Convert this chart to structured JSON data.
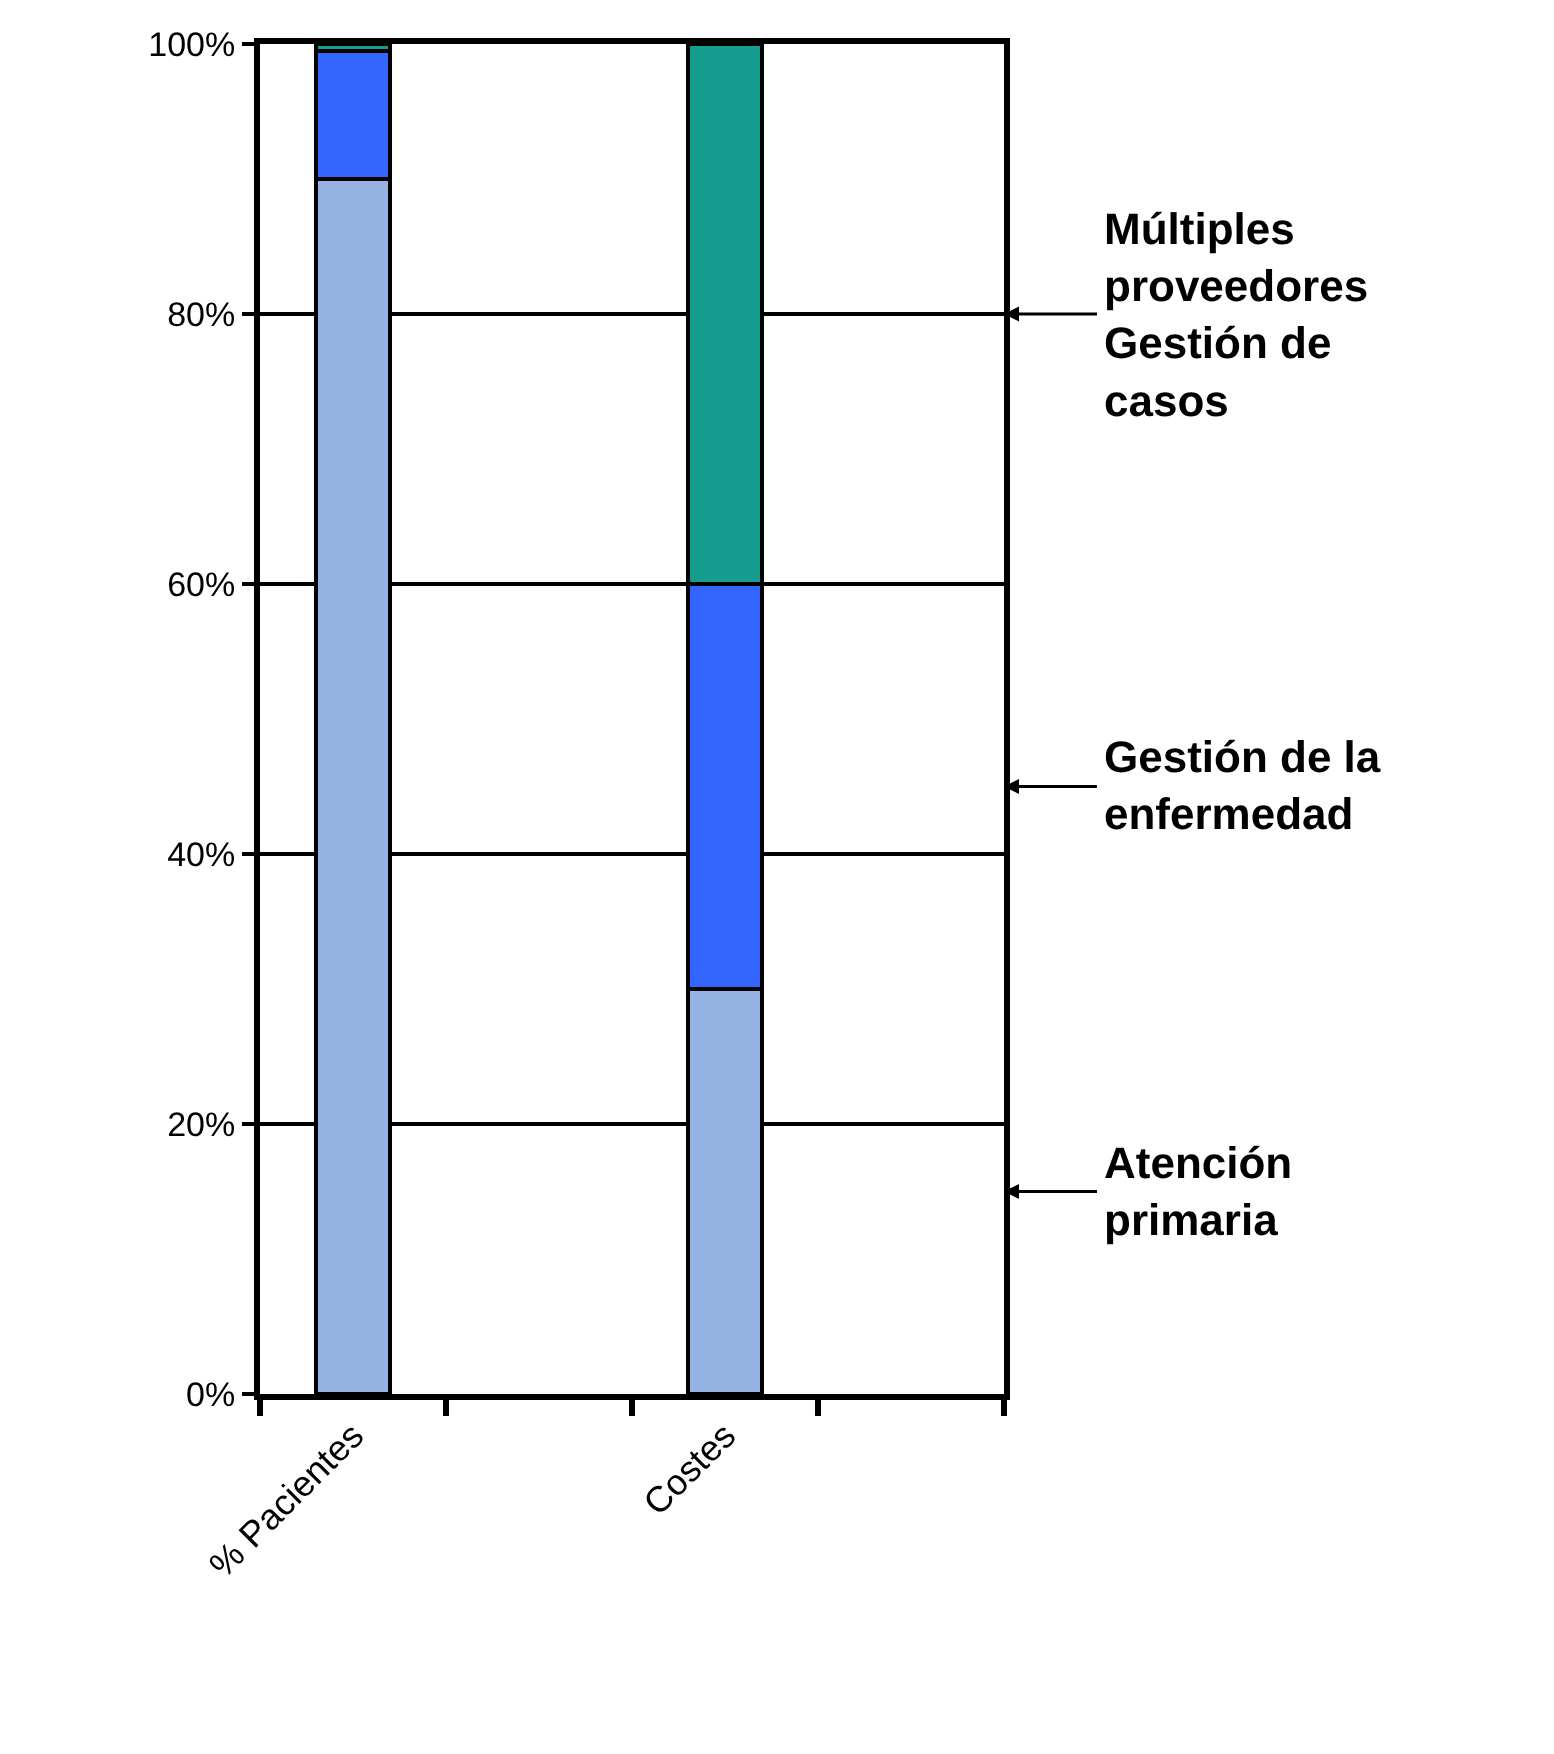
{
  "chart_data": {
    "type": "bar",
    "stacked": true,
    "categories": [
      "% Pacientes",
      null,
      "Costes",
      null
    ],
    "series": [
      {
        "name": "Atención primaria",
        "color": "#95b3e3",
        "values": [
          90,
          null,
          30,
          null
        ]
      },
      {
        "name": "Gestión de la enfermedad",
        "color": "#3366ff",
        "values": [
          9.5,
          null,
          30,
          null
        ]
      },
      {
        "name": "Múltiples proveedores Gestión de casos",
        "color": "#169b8f",
        "values": [
          0.5,
          null,
          40,
          null
        ]
      }
    ],
    "ylim": [
      0,
      100
    ],
    "yticks": [
      {
        "value": 0,
        "label": "0%"
      },
      {
        "value": 20,
        "label": "20%"
      },
      {
        "value": 40,
        "label": "40%"
      },
      {
        "value": 60,
        "label": "60%"
      },
      {
        "value": 80,
        "label": "80%"
      },
      {
        "value": 100,
        "label": "100%"
      }
    ],
    "grid": "y",
    "legend": "right"
  }
}
